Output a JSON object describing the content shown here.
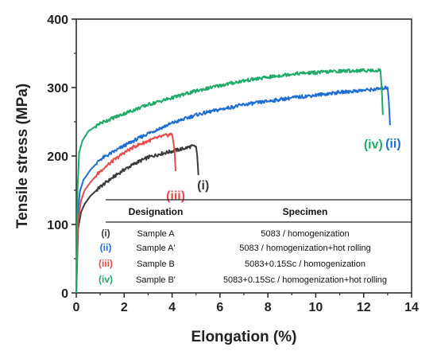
{
  "chart_data": {
    "type": "line",
    "xlabel": "Elongation (%)",
    "ylabel": "Tensile stress (MPa)",
    "xlim": [
      0,
      14
    ],
    "ylim": [
      0,
      400
    ],
    "xticks": [
      "0",
      "2",
      "4",
      "6",
      "8",
      "10",
      "12",
      "14"
    ],
    "yticks": [
      "0",
      "100",
      "200",
      "300",
      "400"
    ],
    "grid": false,
    "series": [
      {
        "name": "(i)",
        "color": "#3a3a3a",
        "x": [
          0,
          0.08,
          0.2,
          0.35,
          0.6,
          1.0,
          1.5,
          2.0,
          2.5,
          3.0,
          3.5,
          4.0,
          4.5,
          4.8,
          5.0,
          5.05,
          5.1
        ],
        "y": [
          0,
          95,
          118,
          130,
          142,
          155,
          168,
          180,
          190,
          198,
          203,
          207,
          211,
          214,
          214,
          200,
          172
        ],
        "label": "(i)"
      },
      {
        "name": "(ii)",
        "color": "#1f6fd1",
        "x": [
          0,
          0.06,
          0.15,
          0.3,
          0.6,
          1.0,
          2.0,
          3.0,
          4.0,
          5.0,
          6.0,
          7.0,
          8.0,
          9.0,
          10.0,
          11.0,
          12.0,
          12.6,
          13.0,
          13.05,
          13.1
        ],
        "y": [
          0,
          115,
          148,
          165,
          180,
          195,
          215,
          233,
          248,
          260,
          268,
          275,
          280,
          285,
          289,
          293,
          296,
          298,
          300,
          280,
          245
        ],
        "label": "(ii)"
      },
      {
        "name": "(iii)",
        "color": "#e84b4b",
        "x": [
          0,
          0.07,
          0.2,
          0.35,
          0.6,
          1.0,
          1.5,
          2.0,
          2.5,
          3.0,
          3.5,
          4.0,
          4.1,
          4.15
        ],
        "y": [
          0,
          105,
          135,
          150,
          162,
          178,
          192,
          205,
          215,
          222,
          228,
          232,
          210,
          178
        ],
        "label": "(iii)"
      },
      {
        "name": "(iv)",
        "color": "#1faa6a",
        "x": [
          0,
          0.05,
          0.12,
          0.25,
          0.5,
          1.0,
          2.0,
          3.0,
          4.0,
          5.0,
          6.0,
          7.0,
          8.0,
          9.0,
          10.0,
          11.0,
          12.0,
          12.7,
          12.75,
          12.8
        ],
        "y": [
          0,
          150,
          205,
          222,
          236,
          248,
          262,
          275,
          285,
          295,
          303,
          310,
          315,
          320,
          322,
          324,
          325,
          325,
          300,
          260
        ],
        "label": "(iv)"
      }
    ],
    "legend_table": {
      "placement": "bottom-right",
      "headers": [
        "Designation",
        "Specimen"
      ],
      "rows": [
        {
          "roman": "(i)",
          "color": "#3a3a3a",
          "designation": "Sample A",
          "specimen": "5083 / homogenization"
        },
        {
          "roman": "(ii)",
          "color": "#1f6fd1",
          "designation": "Sample A'",
          "specimen": "5083 / homogenization+hot rolling"
        },
        {
          "roman": "(iii)",
          "color": "#e84b4b",
          "designation": "Sample B",
          "specimen": "5083+0.15Sc / homogenization"
        },
        {
          "roman": "(iv)",
          "color": "#1faa6a",
          "designation": "Sample B'",
          "specimen": "5083+0.15Sc / homogenization+hot rolling"
        }
      ]
    }
  }
}
